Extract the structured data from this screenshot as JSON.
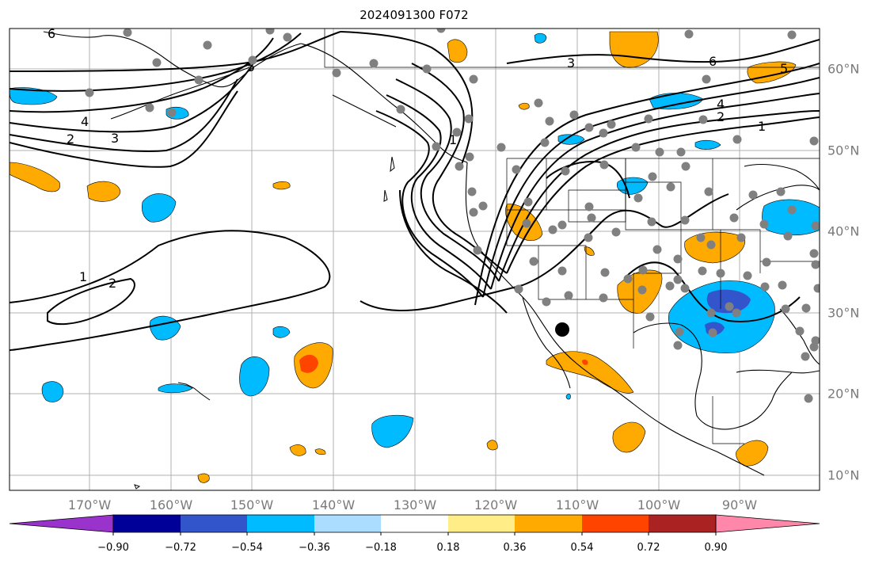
{
  "title": "2024091300 F072",
  "lon_labels": [
    "170°W",
    "160°W",
    "150°W",
    "140°W",
    "130°W",
    "120°W",
    "110°W",
    "100°W",
    "90°W"
  ],
  "lat_labels": [
    "60°N",
    "50°N",
    "40°N",
    "30°N",
    "20°N",
    "10°N"
  ],
  "colorbar": {
    "colors": [
      "#9933cc",
      "#000099",
      "#3355cc",
      "#00bbff",
      "#aaddff",
      "#ffffff",
      "#ffee88",
      "#ffaa00",
      "#ff4400",
      "#aa2222",
      "#ff88aa"
    ],
    "tick_labels": [
      "−0.90",
      "−0.72",
      "−0.54",
      "−0.36",
      "−0.18",
      "0.18",
      "0.36",
      "0.54",
      "0.72",
      "0.90"
    ]
  },
  "contour_labels": [
    "6",
    "5",
    "4",
    "3",
    "2",
    "1",
    "6",
    "5",
    "4",
    "3",
    "2",
    "1",
    "2",
    "1"
  ],
  "station_marker_color": "#808080",
  "highlight_point_color": "#000000"
}
